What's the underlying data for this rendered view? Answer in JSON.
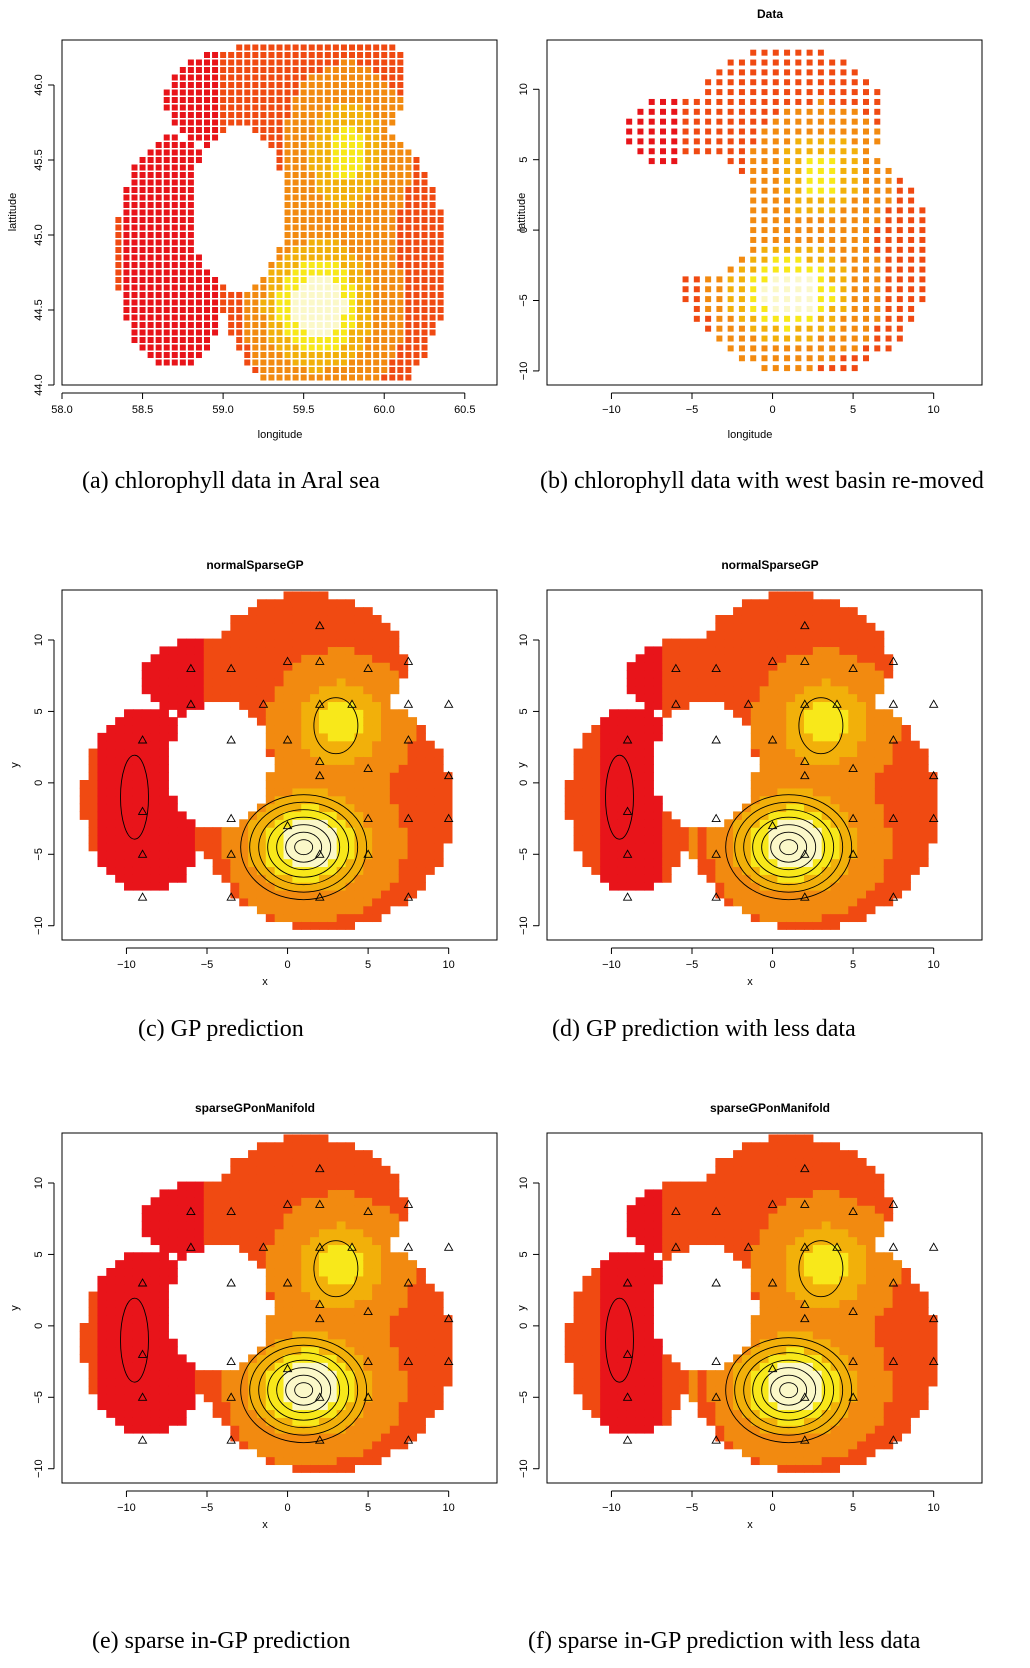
{
  "figure": {
    "panels": [
      {
        "id": "a",
        "kind": "scatter",
        "title": "",
        "xlabel": "longitude",
        "ylabel": "lattitude",
        "xticks": [
          "58.0",
          "58.5",
          "59.0",
          "59.5",
          "60.0",
          "60.5"
        ],
        "yticks": [
          "44.0",
          "44.5",
          "45.0",
          "45.5",
          "46.0"
        ],
        "caption": "(a) chlorophyll data in Aral sea"
      },
      {
        "id": "b",
        "kind": "scatter",
        "title": "Data",
        "xlabel": "longitude",
        "ylabel": "lattitude",
        "xticks": [
          "−10",
          "−5",
          "0",
          "5",
          "10"
        ],
        "yticks": [
          "−10",
          "−5",
          "0",
          "5",
          "10"
        ],
        "caption": "(b) chlorophyll data with west basin re-moved"
      },
      {
        "id": "c",
        "kind": "heatmap",
        "title": "normalSparseGP",
        "xlabel": "x",
        "ylabel": "y",
        "xticks": [
          "−10",
          "−5",
          "0",
          "5",
          "10"
        ],
        "yticks": [
          "−10",
          "−5",
          "0",
          "5",
          "10"
        ],
        "caption": "(c) GP prediction"
      },
      {
        "id": "d",
        "kind": "heatmap",
        "title": "normalSparseGP",
        "xlabel": "x",
        "ylabel": "y",
        "xticks": [
          "−10",
          "−5",
          "0",
          "5",
          "10"
        ],
        "yticks": [
          "−10",
          "−5",
          "0",
          "5",
          "10"
        ],
        "caption": "(d) GP prediction with less data"
      },
      {
        "id": "e",
        "kind": "heatmap",
        "title": "sparseGPonManifold",
        "xlabel": "x",
        "ylabel": "y",
        "xticks": [
          "−10",
          "−5",
          "0",
          "5",
          "10"
        ],
        "yticks": [
          "−10",
          "−5",
          "0",
          "5",
          "10"
        ],
        "caption": "(e) sparse in-GP prediction"
      },
      {
        "id": "f",
        "kind": "heatmap",
        "title": "sparseGPonManifold",
        "xlabel": "x",
        "ylabel": "y",
        "xticks": [
          "−10",
          "−5",
          "0",
          "5",
          "10"
        ],
        "yticks": [
          "−10",
          "−5",
          "0",
          "5",
          "10"
        ],
        "caption": "(f) sparse in-GP prediction with less data"
      }
    ]
  },
  "colors": {
    "red": "#e8141a",
    "orange_red": "#f04a12",
    "orange": "#f28a10",
    "amber": "#f2b00a",
    "yellow": "#f8e81a",
    "pale": "#fbf8c8",
    "axis": "#000000"
  },
  "chart_data": [
    {
      "type": "scatter",
      "panel": "a",
      "xlabel": "longitude",
      "ylabel": "lattitude",
      "xlim": [
        58.0,
        60.7
      ],
      "ylim": [
        44.0,
        46.3
      ],
      "note_values": "grid of chlorophyll samples, colour from red (low) to yellow (high)"
    },
    {
      "type": "scatter",
      "panel": "b",
      "title": "Data",
      "xlabel": "longitude",
      "ylabel": "lattitude",
      "xlim": [
        -14,
        13
      ],
      "ylim": [
        -11,
        13.5
      ]
    },
    {
      "type": "heatmap",
      "panel": "c",
      "title": "normalSparseGP",
      "xlabel": "x",
      "ylabel": "y",
      "xlim": [
        -14,
        13
      ],
      "ylim": [
        -11,
        13.5
      ]
    },
    {
      "type": "heatmap",
      "panel": "d",
      "title": "normalSparseGP",
      "xlabel": "x",
      "ylabel": "y",
      "xlim": [
        -14,
        13
      ],
      "ylim": [
        -11,
        13.5
      ]
    },
    {
      "type": "heatmap",
      "panel": "e",
      "title": "sparseGPonManifold",
      "xlabel": "x",
      "ylabel": "y",
      "xlim": [
        -14,
        13
      ],
      "ylim": [
        -11,
        13.5
      ]
    },
    {
      "type": "heatmap",
      "panel": "f",
      "title": "sparseGPonManifold",
      "xlabel": "x",
      "ylabel": "y",
      "xlim": [
        -14,
        13
      ],
      "ylim": [
        -11,
        13.5
      ]
    }
  ]
}
